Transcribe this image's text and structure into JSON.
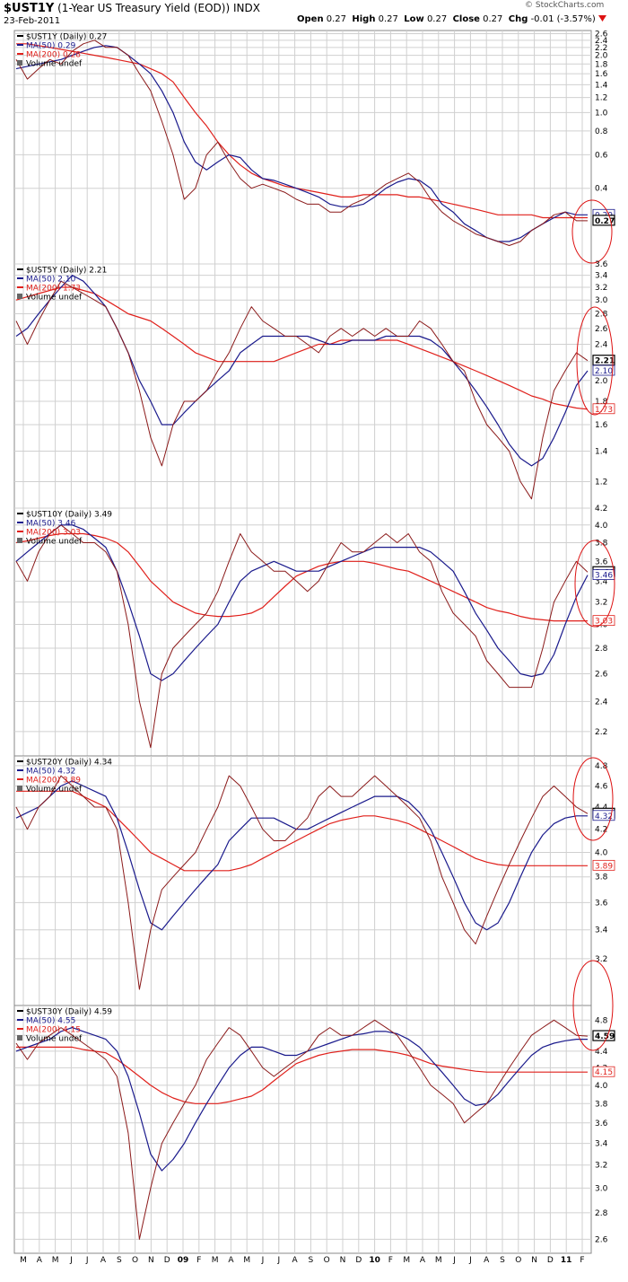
{
  "header": {
    "symbol": "$UST1Y",
    "description": "(1-Year US Treasury Yield (EOD))",
    "exchange": "INDX",
    "date": "23-Feb-2011",
    "open_label": "Open",
    "open": "0.27",
    "high_label": "High",
    "high": "0.27",
    "low_label": "Low",
    "low": "0.27",
    "close_label": "Close",
    "close": "0.27",
    "chg_label": "Chg",
    "chg": "-0.01 (-3.57%)",
    "chg_icon": "down-triangle-icon",
    "logo": "© StockCharts.com"
  },
  "colors": {
    "price": "#8b1a1a",
    "ma50": "#1a1a8c",
    "ma200": "#e0201b",
    "grid": "#d0d0d0",
    "circle": "#d11"
  },
  "x_axis": {
    "labels": [
      "M",
      "A",
      "M",
      "J",
      "J",
      "A",
      "S",
      "O",
      "N",
      "D",
      "09",
      "F",
      "M",
      "A",
      "M",
      "J",
      "J",
      "A",
      "S",
      "O",
      "N",
      "D",
      "10",
      "F",
      "M",
      "A",
      "M",
      "J",
      "J",
      "A",
      "S",
      "O",
      "N",
      "D",
      "11",
      "F"
    ],
    "bold_labels": [
      "09",
      "10",
      "11"
    ]
  },
  "chart_data": [
    {
      "type": "line",
      "legend": [
        "$UST1Y (Daily) 0.27",
        "MA(50) 0.29",
        "MA(200) 0.28",
        "Volume undef"
      ],
      "ylim": [
        0.16,
        2.7
      ],
      "scale": "log",
      "yticks": [
        "2.6",
        "2.4",
        "2.2",
        "2.0",
        "1.8",
        "1.6",
        "1.4",
        "1.2",
        "1.0",
        "0.8",
        "0.6",
        "0.4"
      ],
      "ytick_values": [
        2.6,
        2.4,
        2.2,
        2.0,
        1.8,
        1.6,
        1.4,
        1.2,
        1.0,
        0.8,
        0.6,
        0.4
      ],
      "last_labels": [
        "0.29",
        "0.27"
      ],
      "price": [
        1.9,
        1.5,
        1.7,
        1.9,
        1.8,
        2.1,
        2.3,
        2.4,
        2.2,
        2.2,
        2.0,
        1.6,
        1.3,
        0.9,
        0.6,
        0.35,
        0.4,
        0.6,
        0.7,
        0.55,
        0.45,
        0.4,
        0.42,
        0.4,
        0.38,
        0.35,
        0.33,
        0.33,
        0.3,
        0.3,
        0.33,
        0.35,
        0.38,
        0.42,
        0.45,
        0.48,
        0.43,
        0.35,
        0.3,
        0.27,
        0.25,
        0.23,
        0.22,
        0.21,
        0.2,
        0.21,
        0.24,
        0.26,
        0.29,
        0.3,
        0.27,
        0.27
      ],
      "ma50": [
        1.7,
        1.75,
        1.8,
        1.85,
        1.9,
        2.0,
        2.1,
        2.2,
        2.25,
        2.2,
        2.0,
        1.8,
        1.6,
        1.3,
        1.0,
        0.7,
        0.55,
        0.5,
        0.55,
        0.6,
        0.58,
        0.5,
        0.45,
        0.44,
        0.42,
        0.4,
        0.38,
        0.36,
        0.33,
        0.32,
        0.32,
        0.33,
        0.36,
        0.4,
        0.43,
        0.45,
        0.44,
        0.4,
        0.33,
        0.3,
        0.26,
        0.24,
        0.22,
        0.21,
        0.21,
        0.22,
        0.24,
        0.26,
        0.28,
        0.3,
        0.29,
        0.29
      ],
      "ma200": [
        2.3,
        2.3,
        2.25,
        2.2,
        2.15,
        2.1,
        2.05,
        2.0,
        1.95,
        1.9,
        1.85,
        1.8,
        1.7,
        1.6,
        1.45,
        1.2,
        1.0,
        0.85,
        0.7,
        0.6,
        0.53,
        0.48,
        0.45,
        0.43,
        0.41,
        0.4,
        0.39,
        0.38,
        0.37,
        0.36,
        0.36,
        0.37,
        0.37,
        0.37,
        0.37,
        0.36,
        0.36,
        0.35,
        0.34,
        0.33,
        0.32,
        0.31,
        0.3,
        0.29,
        0.29,
        0.29,
        0.29,
        0.28,
        0.28,
        0.28,
        0.28,
        0.28
      ]
    },
    {
      "type": "line",
      "legend": [
        "$UST5Y (Daily) 2.21",
        "MA(50) 2.10",
        "MA(200) 1.73",
        "Volume undef"
      ],
      "ylim": [
        1.05,
        3.6
      ],
      "scale": "log",
      "yticks": [
        "3.6",
        "3.4",
        "3.2",
        "3.0",
        "2.8",
        "2.6",
        "2.4",
        "2.2",
        "2.0",
        "1.8",
        "1.6",
        "1.4",
        "1.2"
      ],
      "ytick_values": [
        3.6,
        3.4,
        3.2,
        3.0,
        2.8,
        2.6,
        2.4,
        2.2,
        2.0,
        1.8,
        1.6,
        1.4,
        1.2
      ],
      "last_labels": [
        "2.21",
        "2.10",
        "1.73"
      ],
      "price": [
        2.7,
        2.4,
        2.7,
        3.0,
        3.3,
        3.2,
        3.1,
        3.0,
        2.9,
        2.6,
        2.3,
        1.9,
        1.5,
        1.3,
        1.6,
        1.8,
        1.8,
        1.9,
        2.1,
        2.3,
        2.6,
        2.9,
        2.7,
        2.6,
        2.5,
        2.5,
        2.4,
        2.3,
        2.5,
        2.6,
        2.5,
        2.6,
        2.5,
        2.6,
        2.5,
        2.5,
        2.7,
        2.6,
        2.4,
        2.2,
        2.1,
        1.8,
        1.6,
        1.5,
        1.4,
        1.2,
        1.1,
        1.5,
        1.9,
        2.1,
        2.3,
        2.21
      ],
      "ma50": [
        2.5,
        2.6,
        2.8,
        3.0,
        3.2,
        3.4,
        3.3,
        3.1,
        2.9,
        2.6,
        2.3,
        2.0,
        1.8,
        1.6,
        1.6,
        1.7,
        1.8,
        1.9,
        2.0,
        2.1,
        2.3,
        2.4,
        2.5,
        2.5,
        2.5,
        2.5,
        2.5,
        2.45,
        2.4,
        2.4,
        2.45,
        2.45,
        2.45,
        2.5,
        2.5,
        2.5,
        2.5,
        2.45,
        2.35,
        2.2,
        2.05,
        1.9,
        1.75,
        1.6,
        1.45,
        1.35,
        1.3,
        1.35,
        1.5,
        1.7,
        1.95,
        2.1
      ],
      "ma200": [
        3.0,
        3.05,
        3.1,
        3.15,
        3.2,
        3.2,
        3.15,
        3.1,
        3.0,
        2.9,
        2.8,
        2.75,
        2.7,
        2.6,
        2.5,
        2.4,
        2.3,
        2.25,
        2.2,
        2.2,
        2.2,
        2.2,
        2.2,
        2.2,
        2.25,
        2.3,
        2.35,
        2.4,
        2.4,
        2.45,
        2.45,
        2.45,
        2.45,
        2.45,
        2.45,
        2.4,
        2.35,
        2.3,
        2.25,
        2.2,
        2.15,
        2.1,
        2.05,
        2.0,
        1.95,
        1.9,
        1.85,
        1.82,
        1.78,
        1.76,
        1.74,
        1.73
      ]
    },
    {
      "type": "line",
      "legend": [
        "$UST10Y (Daily) 3.49",
        "MA(50) 3.46",
        "MA(200) 3.03",
        "Volume undef"
      ],
      "ylim": [
        2.05,
        4.2
      ],
      "scale": "log",
      "yticks": [
        "4.2",
        "4.0",
        "3.8",
        "3.6",
        "3.4",
        "3.2",
        "3.0",
        "2.8",
        "2.6",
        "2.4",
        "2.2"
      ],
      "ytick_values": [
        4.2,
        4.0,
        3.8,
        3.6,
        3.4,
        3.2,
        3.0,
        2.8,
        2.6,
        2.4,
        2.2
      ],
      "last_labels": [
        "3.49",
        "3.46",
        "3.03"
      ],
      "price": [
        3.6,
        3.4,
        3.7,
        3.9,
        4.0,
        3.9,
        3.8,
        3.8,
        3.7,
        3.5,
        3.0,
        2.4,
        2.1,
        2.6,
        2.8,
        2.9,
        3.0,
        3.1,
        3.3,
        3.6,
        3.9,
        3.7,
        3.6,
        3.5,
        3.5,
        3.4,
        3.3,
        3.4,
        3.6,
        3.8,
        3.7,
        3.7,
        3.8,
        3.9,
        3.8,
        3.9,
        3.7,
        3.6,
        3.3,
        3.1,
        3.0,
        2.9,
        2.7,
        2.6,
        2.5,
        2.5,
        2.5,
        2.8,
        3.2,
        3.4,
        3.6,
        3.49
      ],
      "ma50": [
        3.6,
        3.7,
        3.8,
        3.9,
        4.0,
        4.0,
        3.95,
        3.85,
        3.75,
        3.5,
        3.2,
        2.9,
        2.6,
        2.55,
        2.6,
        2.7,
        2.8,
        2.9,
        3.0,
        3.2,
        3.4,
        3.5,
        3.55,
        3.6,
        3.55,
        3.5,
        3.5,
        3.5,
        3.55,
        3.6,
        3.65,
        3.7,
        3.75,
        3.75,
        3.75,
        3.75,
        3.75,
        3.7,
        3.6,
        3.5,
        3.3,
        3.1,
        2.95,
        2.8,
        2.7,
        2.6,
        2.58,
        2.6,
        2.75,
        3.0,
        3.25,
        3.46
      ],
      "ma200": [
        3.8,
        3.82,
        3.85,
        3.88,
        3.9,
        3.9,
        3.9,
        3.88,
        3.85,
        3.8,
        3.7,
        3.55,
        3.4,
        3.3,
        3.2,
        3.15,
        3.1,
        3.08,
        3.07,
        3.07,
        3.08,
        3.1,
        3.15,
        3.25,
        3.35,
        3.45,
        3.5,
        3.55,
        3.58,
        3.6,
        3.6,
        3.6,
        3.58,
        3.55,
        3.52,
        3.5,
        3.45,
        3.4,
        3.35,
        3.3,
        3.25,
        3.2,
        3.15,
        3.12,
        3.1,
        3.07,
        3.05,
        3.04,
        3.03,
        3.03,
        3.03,
        3.03
      ]
    },
    {
      "type": "line",
      "legend": [
        "$UST20Y (Daily) 4.34",
        "MA(50) 4.32",
        "MA(200) 3.89",
        "Volume undef"
      ],
      "ylim": [
        2.9,
        4.9
      ],
      "scale": "log",
      "yticks": [
        "4.8",
        "4.6",
        "4.4",
        "4.2",
        "4.0",
        "3.8",
        "3.6",
        "3.4",
        "3.2"
      ],
      "ytick_values": [
        4.8,
        4.6,
        4.4,
        4.2,
        4.0,
        3.8,
        3.6,
        3.4,
        3.2
      ],
      "last_labels": [
        "4.34",
        "4.32",
        "3.89"
      ],
      "price": [
        4.4,
        4.2,
        4.4,
        4.5,
        4.7,
        4.6,
        4.5,
        4.4,
        4.4,
        4.2,
        3.6,
        3.0,
        3.4,
        3.7,
        3.8,
        3.9,
        4.0,
        4.2,
        4.4,
        4.7,
        4.6,
        4.4,
        4.2,
        4.1,
        4.1,
        4.2,
        4.3,
        4.5,
        4.6,
        4.5,
        4.5,
        4.6,
        4.7,
        4.6,
        4.5,
        4.4,
        4.3,
        4.1,
        3.8,
        3.6,
        3.4,
        3.3,
        3.5,
        3.7,
        3.9,
        4.1,
        4.3,
        4.5,
        4.6,
        4.5,
        4.4,
        4.34
      ],
      "ma50": [
        4.3,
        4.35,
        4.4,
        4.5,
        4.6,
        4.65,
        4.6,
        4.55,
        4.5,
        4.3,
        4.0,
        3.7,
        3.45,
        3.4,
        3.5,
        3.6,
        3.7,
        3.8,
        3.9,
        4.1,
        4.2,
        4.3,
        4.3,
        4.3,
        4.25,
        4.2,
        4.2,
        4.25,
        4.3,
        4.35,
        4.4,
        4.45,
        4.5,
        4.5,
        4.5,
        4.45,
        4.35,
        4.2,
        4.0,
        3.8,
        3.6,
        3.45,
        3.4,
        3.45,
        3.6,
        3.8,
        4.0,
        4.15,
        4.25,
        4.3,
        4.32,
        4.32
      ],
      "ma200": [
        4.55,
        4.55,
        4.55,
        4.55,
        4.55,
        4.55,
        4.5,
        4.45,
        4.4,
        4.3,
        4.2,
        4.1,
        4.0,
        3.95,
        3.9,
        3.85,
        3.85,
        3.85,
        3.85,
        3.85,
        3.87,
        3.9,
        3.95,
        4.0,
        4.05,
        4.1,
        4.15,
        4.2,
        4.25,
        4.28,
        4.3,
        4.32,
        4.32,
        4.3,
        4.28,
        4.25,
        4.2,
        4.15,
        4.1,
        4.05,
        4.0,
        3.95,
        3.92,
        3.9,
        3.89,
        3.89,
        3.89,
        3.89,
        3.89,
        3.89,
        3.89,
        3.89
      ]
    },
    {
      "type": "line",
      "legend": [
        "$UST30Y (Daily) 4.59",
        "MA(50) 4.55",
        "MA(200) 4.15",
        "Volume undef"
      ],
      "ylim": [
        2.5,
        5.0
      ],
      "scale": "log",
      "yticks": [
        "4.8",
        "4.6",
        "4.4",
        "4.2",
        "4.0",
        "3.8",
        "3.6",
        "3.4",
        "3.2",
        "3.0",
        "2.8",
        "2.6"
      ],
      "ytick_values": [
        4.8,
        4.6,
        4.4,
        4.2,
        4.0,
        3.8,
        3.6,
        3.4,
        3.2,
        3.0,
        2.8,
        2.6
      ],
      "last_labels": [
        "4.59",
        "4.15"
      ],
      "price": [
        4.5,
        4.3,
        4.5,
        4.6,
        4.7,
        4.6,
        4.5,
        4.4,
        4.3,
        4.1,
        3.5,
        2.6,
        3.0,
        3.4,
        3.6,
        3.8,
        4.0,
        4.3,
        4.5,
        4.7,
        4.6,
        4.4,
        4.2,
        4.1,
        4.2,
        4.3,
        4.4,
        4.6,
        4.7,
        4.6,
        4.6,
        4.7,
        4.8,
        4.7,
        4.6,
        4.4,
        4.2,
        4.0,
        3.9,
        3.8,
        3.6,
        3.7,
        3.8,
        4.0,
        4.2,
        4.4,
        4.6,
        4.7,
        4.8,
        4.7,
        4.6,
        4.59
      ],
      "ma50": [
        4.4,
        4.45,
        4.5,
        4.55,
        4.65,
        4.7,
        4.65,
        4.6,
        4.55,
        4.4,
        4.1,
        3.7,
        3.3,
        3.15,
        3.25,
        3.4,
        3.6,
        3.8,
        4.0,
        4.2,
        4.35,
        4.45,
        4.45,
        4.4,
        4.35,
        4.35,
        4.4,
        4.45,
        4.5,
        4.55,
        4.6,
        4.62,
        4.65,
        4.65,
        4.62,
        4.55,
        4.45,
        4.3,
        4.15,
        4.0,
        3.85,
        3.78,
        3.8,
        3.9,
        4.05,
        4.2,
        4.35,
        4.45,
        4.5,
        4.53,
        4.55,
        4.55
      ],
      "ma200": [
        4.45,
        4.45,
        4.45,
        4.45,
        4.45,
        4.45,
        4.42,
        4.4,
        4.38,
        4.3,
        4.2,
        4.1,
        4.0,
        3.92,
        3.86,
        3.82,
        3.8,
        3.8,
        3.8,
        3.82,
        3.85,
        3.88,
        3.95,
        4.05,
        4.15,
        4.25,
        4.3,
        4.35,
        4.38,
        4.4,
        4.42,
        4.42,
        4.42,
        4.4,
        4.38,
        4.35,
        4.3,
        4.25,
        4.22,
        4.2,
        4.18,
        4.16,
        4.15,
        4.15,
        4.15,
        4.15,
        4.15,
        4.15,
        4.15,
        4.15,
        4.15,
        4.15
      ]
    }
  ]
}
